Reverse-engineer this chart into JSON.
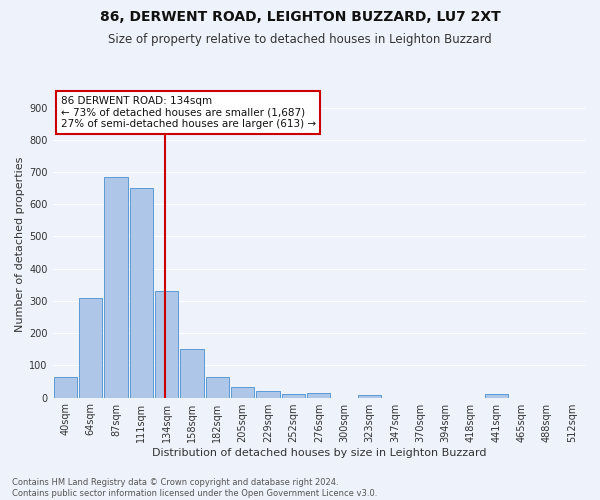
{
  "title1": "86, DERWENT ROAD, LEIGHTON BUZZARD, LU7 2XT",
  "title2": "Size of property relative to detached houses in Leighton Buzzard",
  "xlabel": "Distribution of detached houses by size in Leighton Buzzard",
  "ylabel": "Number of detached properties",
  "bin_labels": [
    "40sqm",
    "64sqm",
    "87sqm",
    "111sqm",
    "134sqm",
    "158sqm",
    "182sqm",
    "205sqm",
    "229sqm",
    "252sqm",
    "276sqm",
    "300sqm",
    "323sqm",
    "347sqm",
    "370sqm",
    "394sqm",
    "418sqm",
    "441sqm",
    "465sqm",
    "488sqm",
    "512sqm"
  ],
  "bar_heights": [
    65,
    310,
    685,
    650,
    330,
    150,
    65,
    32,
    20,
    12,
    15,
    0,
    8,
    0,
    0,
    0,
    0,
    10,
    0,
    0,
    0
  ],
  "bar_color": "#aec6e8",
  "bar_edge_color": "#5b9bd5",
  "vline_color": "#cc0000",
  "vline_pos": 3.925,
  "annotation_text": "86 DERWENT ROAD: 134sqm\n← 73% of detached houses are smaller (1,687)\n27% of semi-detached houses are larger (613) →",
  "annotation_box_color": "#ffffff",
  "annotation_box_edge": "#cc0000",
  "ylim": [
    0,
    950
  ],
  "yticks": [
    0,
    100,
    200,
    300,
    400,
    500,
    600,
    700,
    800,
    900
  ],
  "footnote": "Contains HM Land Registry data © Crown copyright and database right 2024.\nContains public sector information licensed under the Open Government Licence v3.0.",
  "bg_color": "#eef2fa",
  "grid_color": "#ffffff",
  "title1_fontsize": 10,
  "title2_fontsize": 8.5,
  "label_fontsize": 8,
  "tick_fontsize": 7,
  "annotation_fontsize": 7.5,
  "footnote_fontsize": 6
}
